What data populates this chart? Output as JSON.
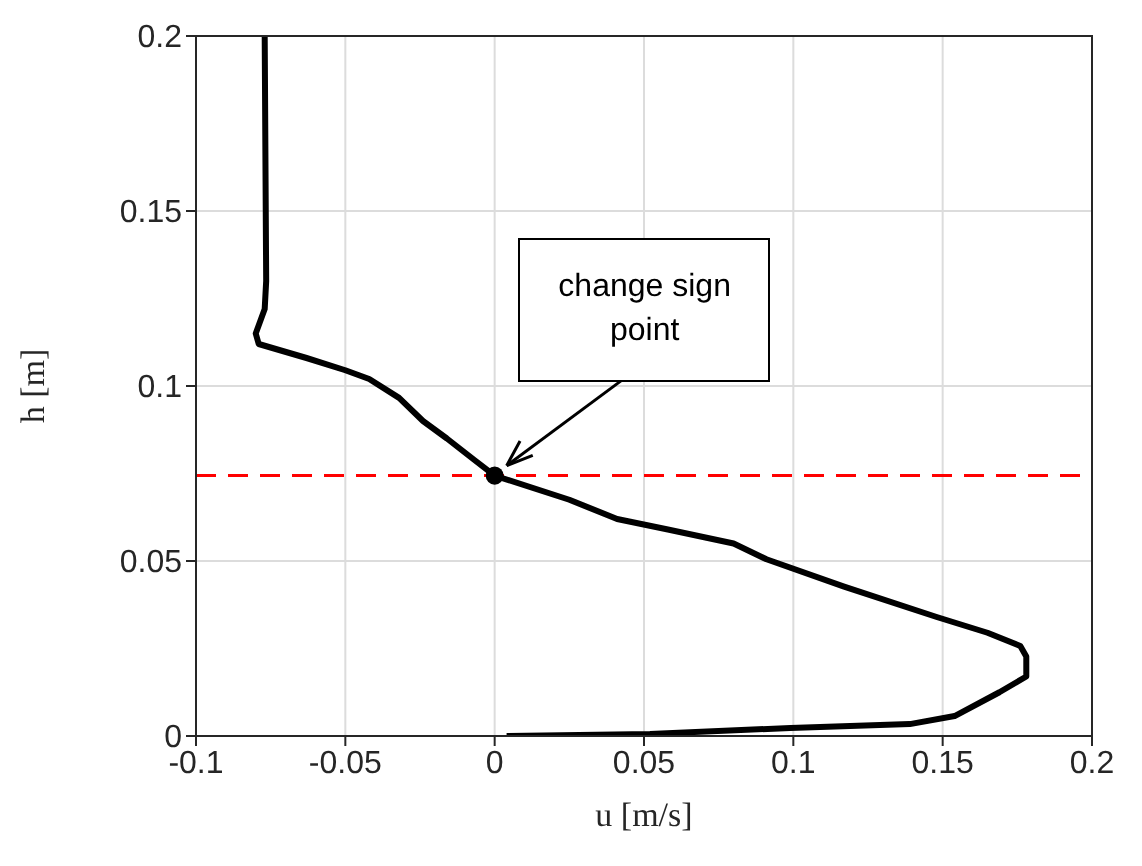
{
  "chart_data": {
    "type": "line",
    "xlabel": "u [m/s]",
    "ylabel": "h [m]",
    "xlim": [
      -0.1,
      0.2
    ],
    "xticks": [
      -0.1,
      -0.05,
      0,
      0.05,
      0.1,
      0.15,
      0.2
    ],
    "ylim": [
      0,
      0.2
    ],
    "yticks": [
      0,
      0.05,
      0.1,
      0.15,
      0.2
    ],
    "grid": true,
    "series": [
      {
        "color": "#000000",
        "marker": "none",
        "line_style": "solid",
        "x": [
          -0.077,
          -0.0765,
          -0.077,
          -0.08,
          -0.079,
          -0.063,
          -0.05,
          -0.042,
          -0.032,
          -0.024,
          -0.016,
          -0.007,
          0,
          0.025,
          0.041,
          0.058,
          0.08,
          0.091,
          0.117,
          0.148,
          0.165,
          0.176,
          0.178,
          0.178,
          0.169,
          0.154,
          0.139,
          0.099,
          0.052,
          0.004
        ],
        "values": [
          0.2,
          0.13,
          0.122,
          0.115,
          0.112,
          0.108,
          0.1045,
          0.102,
          0.0966,
          0.09,
          0.085,
          0.079,
          0.0744,
          0.0675,
          0.062,
          0.059,
          0.055,
          0.0505,
          0.0427,
          0.034,
          0.0295,
          0.0257,
          0.0227,
          0.017,
          0.0125,
          0.0057,
          0.0034,
          0.0023,
          0.0006,
          0
        ]
      },
      {
        "type": "scatter",
        "color": "#000000",
        "marker": "circle",
        "x": [
          0
        ],
        "values": [
          0.0744
        ]
      }
    ],
    "ref_lines": [
      {
        "axis": "y",
        "value": 0.0744,
        "color": "#ff0000",
        "line_style": "dashed"
      }
    ],
    "annotations": [
      {
        "text": "change sign point",
        "x": 0,
        "y": 0.0744
      }
    ]
  }
}
